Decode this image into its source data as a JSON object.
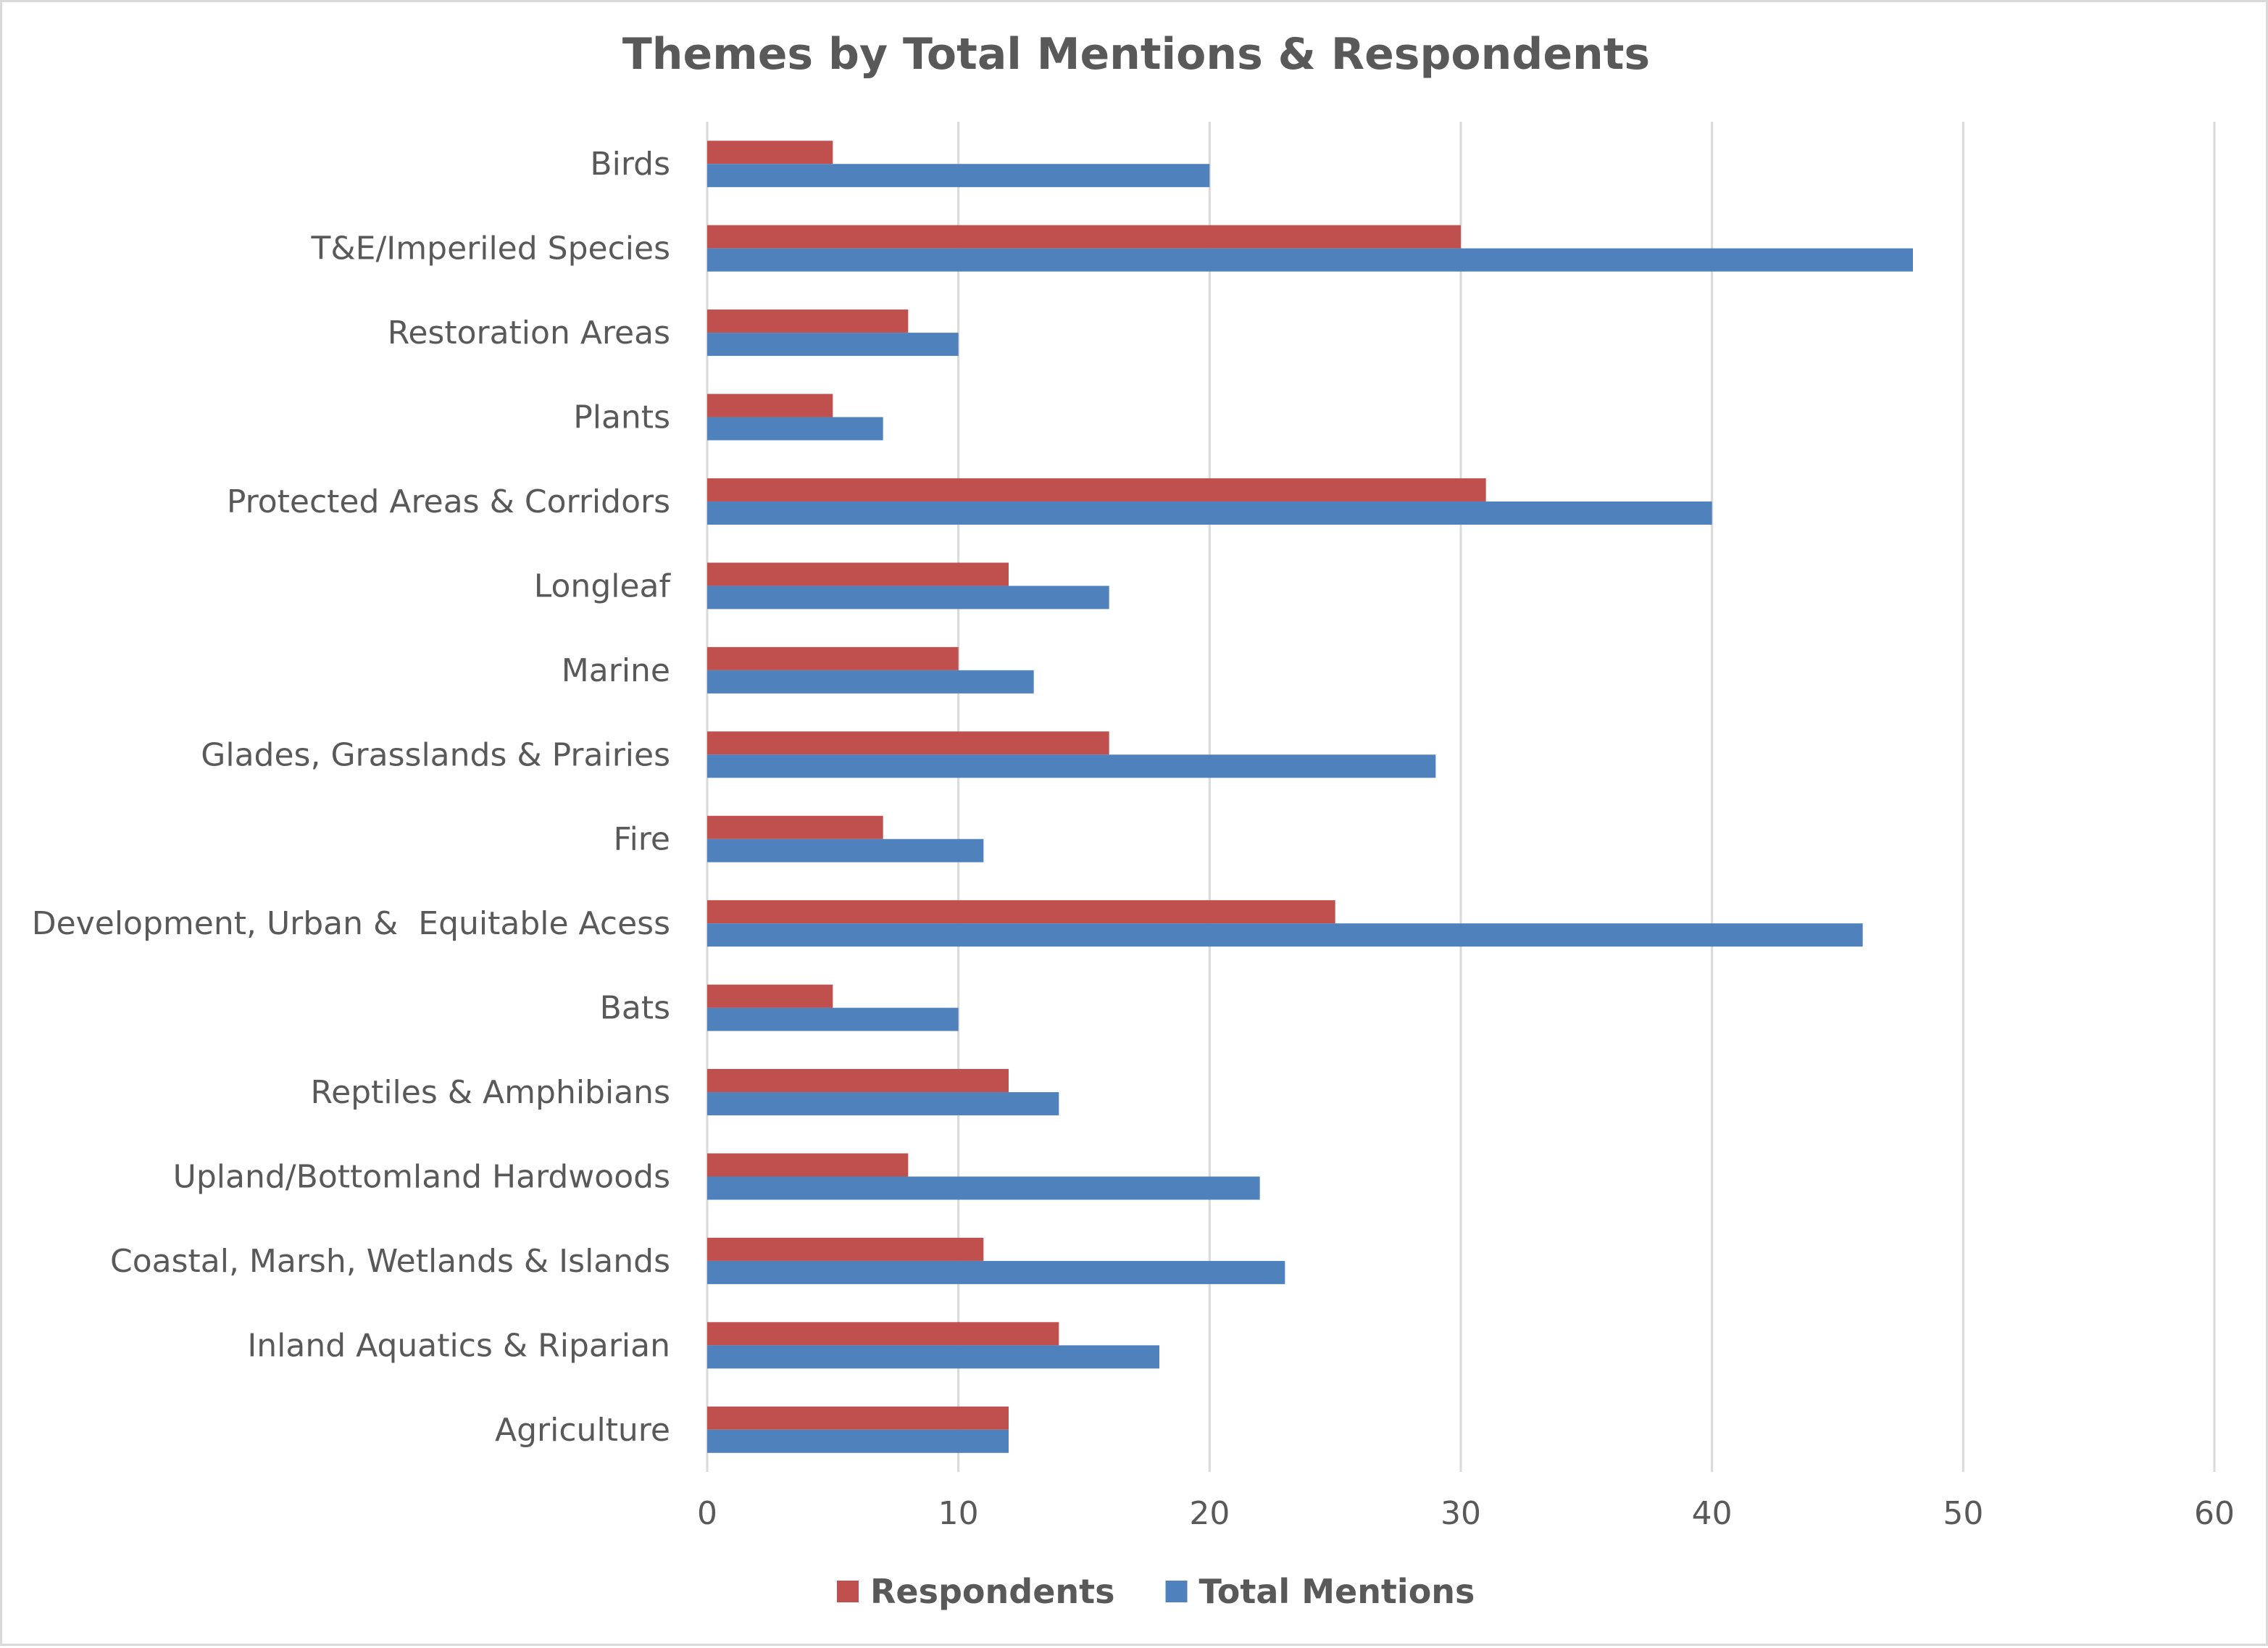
{
  "chart_data": {
    "type": "bar",
    "orientation": "horizontal",
    "title": "Themes by Total Mentions & Respondents",
    "xlabel": "",
    "ylabel": "",
    "xlim": [
      0,
      60
    ],
    "x_ticks": [
      0,
      10,
      20,
      30,
      40,
      50,
      60
    ],
    "grid": true,
    "legend_position": "bottom",
    "categories": [
      "Birds",
      "T&E/Imperiled Species",
      "Restoration Areas",
      "Plants",
      "Protected Areas & Corridors",
      "Longleaf",
      "Marine",
      "Glades, Grasslands & Prairies",
      "Fire",
      "Development, Urban &  Equitable Acess",
      "Bats",
      "Reptiles & Amphibians",
      "Upland/Bottomland Hardwoods",
      "Coastal, Marsh, Wetlands & Islands",
      "Inland Aquatics & Riparian",
      "Agriculture"
    ],
    "series": [
      {
        "name": "Respondents",
        "color": "#c0504d",
        "values": [
          5,
          30,
          8,
          5,
          31,
          12,
          10,
          16,
          7,
          25,
          5,
          12,
          8,
          11,
          14,
          12
        ]
      },
      {
        "name": "Total Mentions",
        "color": "#4f81bd",
        "values": [
          20,
          48,
          10,
          7,
          40,
          16,
          13,
          29,
          11,
          46,
          10,
          14,
          22,
          23,
          18,
          12
        ]
      }
    ]
  }
}
